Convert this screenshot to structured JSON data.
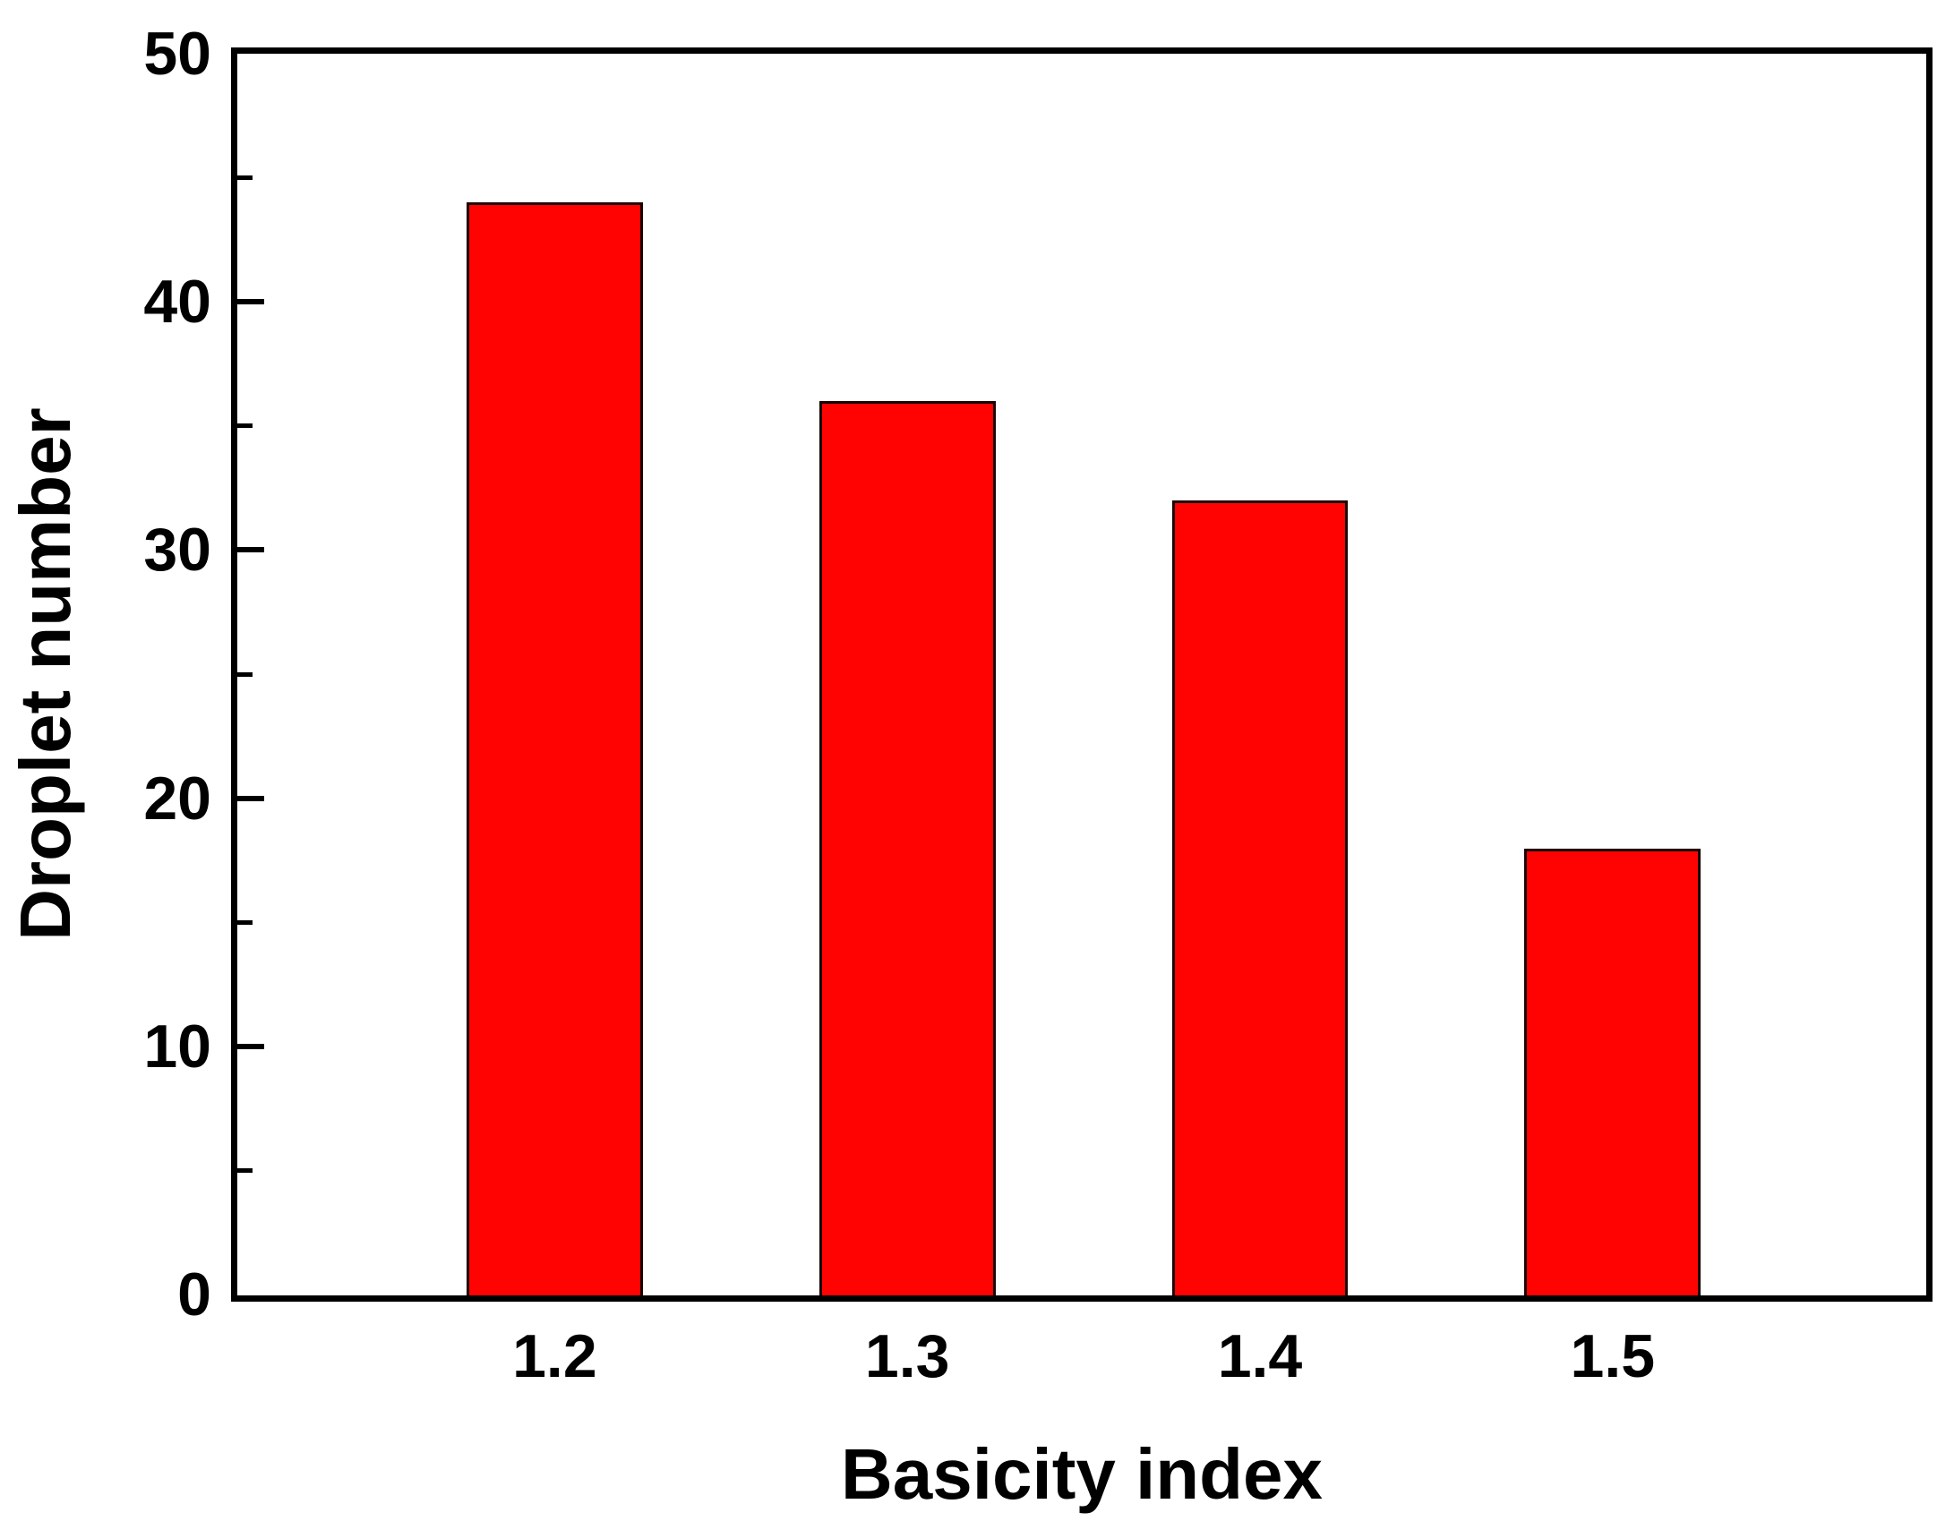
{
  "chart_data": {
    "type": "bar",
    "title": "",
    "xlabel": "Basicity index",
    "ylabel": "Droplet number",
    "categories": [
      "1.2",
      "1.3",
      "1.4",
      "1.5"
    ],
    "values": [
      44,
      36,
      32,
      18
    ],
    "ylim": [
      0,
      50
    ],
    "yticks_major": [
      0,
      10,
      20,
      30,
      40,
      50
    ],
    "yticks_minor": [
      5,
      15,
      25,
      35,
      45
    ],
    "grid": false,
    "legend": false,
    "bar_color": "#ff0303",
    "bar_border_color": "#1a0000",
    "axis_color": "#000000",
    "background": "#ffffff"
  }
}
